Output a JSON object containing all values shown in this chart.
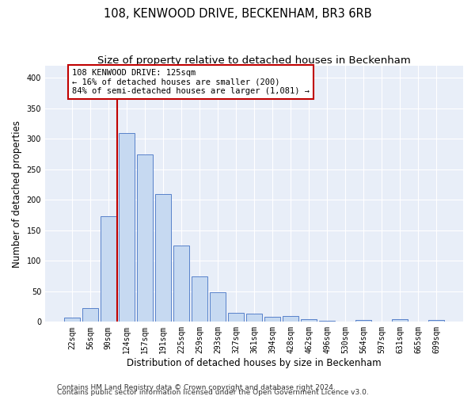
{
  "title_line1": "108, KENWOOD DRIVE, BECKENHAM, BR3 6RB",
  "title_line2": "Size of property relative to detached houses in Beckenham",
  "xlabel": "Distribution of detached houses by size in Beckenham",
  "ylabel": "Number of detached properties",
  "categories": [
    "22sqm",
    "56sqm",
    "90sqm",
    "124sqm",
    "157sqm",
    "191sqm",
    "225sqm",
    "259sqm",
    "293sqm",
    "327sqm",
    "361sqm",
    "394sqm",
    "428sqm",
    "462sqm",
    "496sqm",
    "530sqm",
    "564sqm",
    "597sqm",
    "631sqm",
    "665sqm",
    "699sqm"
  ],
  "values": [
    7,
    22,
    173,
    310,
    275,
    210,
    125,
    75,
    48,
    15,
    14,
    8,
    9,
    4,
    2,
    1,
    3,
    1,
    4,
    1,
    3
  ],
  "bar_color": "#c6d9f1",
  "bar_edge_color": "#4472c4",
  "vline_color": "#c00000",
  "annotation_text": "108 KENWOOD DRIVE: 125sqm\n← 16% of detached houses are smaller (200)\n84% of semi-detached houses are larger (1,081) →",
  "annotation_box_color": "#c00000",
  "ylim": [
    0,
    420
  ],
  "yticks": [
    0,
    50,
    100,
    150,
    200,
    250,
    300,
    350,
    400
  ],
  "plot_bg_color": "#e8eef8",
  "footer_line1": "Contains HM Land Registry data © Crown copyright and database right 2024.",
  "footer_line2": "Contains public sector information licensed under the Open Government Licence v3.0.",
  "title_fontsize": 10.5,
  "subtitle_fontsize": 9.5,
  "axis_label_fontsize": 8.5,
  "tick_fontsize": 7,
  "annotation_fontsize": 7.5,
  "footer_fontsize": 6.5
}
